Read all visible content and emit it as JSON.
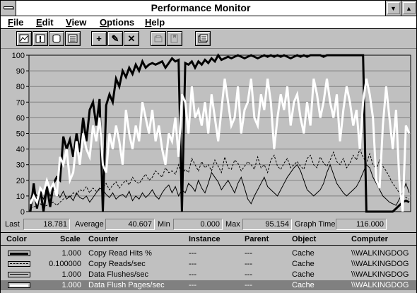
{
  "window": {
    "title": "Performance Monitor"
  },
  "menu": {
    "file": {
      "first": "F",
      "rest": "ile"
    },
    "edit": {
      "first": "E",
      "rest": "dit"
    },
    "view": {
      "first": "V",
      "rest": "iew"
    },
    "options": {
      "first": "O",
      "rest": "ptions"
    },
    "help": {
      "first": "H",
      "rest": "elp"
    }
  },
  "toolbar": {
    "buttons": [
      {
        "icon": "chart-view-icon"
      },
      {
        "icon": "alert-view-icon"
      },
      {
        "icon": "log-view-icon"
      },
      {
        "icon": "report-view-icon"
      },
      {
        "icon": "add-counter-icon",
        "glyph": "+"
      },
      {
        "icon": "edit-counter-icon",
        "glyph": "✎"
      },
      {
        "icon": "delete-counter-icon",
        "glyph": "✕"
      },
      {
        "icon": "update-now-icon"
      },
      {
        "icon": "bookmark-icon"
      },
      {
        "icon": "options-icon"
      }
    ]
  },
  "valuebar": {
    "last_label": "Last",
    "last_value": "18.781",
    "average_label": "Average",
    "average_value": "40.607",
    "min_label": "Min",
    "min_value": "0.000",
    "max_label": "Max",
    "max_value": "95.154",
    "graph_time_label": "Graph Time",
    "graph_time_value": "116.000"
  },
  "legend": {
    "headers": {
      "color": "Color",
      "scale": "Scale",
      "counter": "Counter",
      "instance": "Instance",
      "parent": "Parent",
      "object": "Object",
      "computer": "Computer"
    },
    "rows": [
      {
        "scale": "1.000",
        "counter": "Copy Read Hits %",
        "instance": "---",
        "parent": "---",
        "object": "Cache",
        "computer": "\\\\WALKINGDOG",
        "style": "thick-black"
      },
      {
        "scale": "0.100000",
        "counter": "Copy Reads/sec",
        "instance": "---",
        "parent": "---",
        "object": "Cache",
        "computer": "\\\\WALKINGDOG",
        "style": "dashed-black"
      },
      {
        "scale": "1.000",
        "counter": "Data Flushes/sec",
        "instance": "---",
        "parent": "---",
        "object": "Cache",
        "computer": "\\\\WALKINGDOG",
        "style": "thin-black"
      },
      {
        "scale": "1.000",
        "counter": "Data Flush Pages/sec",
        "instance": "---",
        "parent": "---",
        "object": "Cache",
        "computer": "\\\\WALKINGDOG",
        "style": "thick-white"
      }
    ]
  },
  "chart_data": {
    "type": "line",
    "ylim": [
      0,
      100
    ],
    "y_ticks": [
      "0",
      "10",
      "20",
      "30",
      "40",
      "50",
      "60",
      "70",
      "80",
      "90",
      "100"
    ],
    "grid": "horizontal",
    "series": [
      {
        "name": "Copy Read Hits %",
        "color": "#000000",
        "style": "thick",
        "values": [
          0,
          18,
          2,
          14,
          0,
          16,
          3,
          18,
          22,
          20,
          48,
          40,
          46,
          35,
          50,
          38,
          60,
          45,
          65,
          70,
          55,
          72,
          0,
          68,
          75,
          70,
          85,
          80,
          90,
          86,
          92,
          88,
          94,
          90,
          96,
          92,
          94,
          95,
          94,
          95,
          96,
          92,
          95,
          98,
          96,
          97,
          0,
          95,
          94,
          96,
          92,
          96,
          94,
          97,
          95,
          98,
          96,
          100,
          97,
          98,
          99,
          98,
          99,
          100,
          99,
          98,
          99,
          100,
          99,
          98,
          99,
          100,
          99,
          100,
          99,
          100,
          99,
          100,
          99,
          98,
          99,
          100,
          99,
          100,
          99,
          100,
          100,
          100,
          100,
          99,
          100,
          100,
          100,
          100,
          100,
          100,
          100,
          100,
          100,
          100,
          100,
          100,
          0,
          0,
          0,
          0,
          0,
          0,
          0,
          0,
          0,
          2,
          4,
          6,
          7,
          6
        ]
      },
      {
        "name": "Copy Reads/sec",
        "color": "#000000",
        "style": "dashed",
        "values": [
          2,
          3,
          4,
          5,
          3,
          4,
          5,
          6,
          4,
          6,
          8,
          10,
          9,
          12,
          11,
          14,
          13,
          16,
          12,
          15,
          13,
          14,
          15,
          18,
          14,
          17,
          19,
          15,
          18,
          20,
          17,
          22,
          19,
          18,
          21,
          24,
          20,
          22,
          26,
          24,
          22,
          28,
          25,
          26,
          24,
          30,
          23,
          27,
          25,
          34,
          30,
          26,
          32,
          28,
          30,
          26,
          33,
          29,
          25,
          35,
          28,
          27,
          33,
          31,
          26,
          29,
          32,
          30,
          27,
          35,
          28,
          30,
          25,
          33,
          36,
          29,
          27,
          31,
          34,
          28,
          30,
          32,
          29,
          27,
          34,
          36,
          30,
          28,
          35,
          31,
          29,
          33,
          38,
          32,
          30,
          34,
          28,
          31,
          36,
          33,
          40,
          35,
          31,
          37,
          30,
          27,
          33,
          29,
          26,
          22,
          18,
          15,
          12,
          10,
          9,
          8
        ]
      },
      {
        "name": "Data Flushes/sec",
        "color": "#000000",
        "style": "thin",
        "values": [
          8,
          14,
          10,
          12,
          8,
          15,
          10,
          14,
          12,
          9,
          13,
          8,
          10,
          7,
          12,
          9,
          8,
          10,
          6,
          9,
          12,
          15,
          14,
          11,
          9,
          12,
          8,
          10,
          11,
          9,
          13,
          7,
          10,
          8,
          12,
          9,
          11,
          14,
          10,
          8,
          12,
          15,
          17,
          12,
          16,
          10,
          14,
          12,
          18,
          16,
          13,
          20,
          15,
          12,
          18,
          25,
          22,
          19,
          14,
          17,
          20,
          16,
          12,
          18,
          22,
          15,
          8,
          5,
          10,
          14,
          18,
          22,
          16,
          14,
          12,
          10,
          14,
          18,
          22,
          25,
          28,
          30,
          26,
          20,
          14,
          12,
          10,
          12,
          14,
          18,
          25,
          30,
          24,
          18,
          15,
          12,
          10,
          12,
          14,
          16,
          20,
          25,
          30,
          28,
          22,
          18,
          14,
          10,
          8,
          6,
          5,
          4,
          8,
          12,
          18,
          12
        ]
      },
      {
        "name": "Data Flush Pages/sec",
        "color": "#ffffff",
        "style": "thick",
        "values": [
          5,
          10,
          6,
          15,
          12,
          20,
          14,
          18,
          10,
          35,
          30,
          40,
          20,
          25,
          45,
          30,
          50,
          40,
          35,
          55,
          45,
          60,
          30,
          25,
          50,
          40,
          55,
          45,
          30,
          65,
          50,
          40,
          55,
          45,
          70,
          60,
          50,
          65,
          45,
          55,
          40,
          30,
          50,
          45,
          60,
          35,
          75,
          70,
          50,
          80,
          60,
          65,
          55,
          70,
          50,
          75,
          60,
          45,
          65,
          85,
          70,
          55,
          60,
          80,
          50,
          65,
          70,
          85,
          60,
          55,
          75,
          65,
          85,
          70,
          40,
          60,
          75,
          65,
          80,
          55,
          70,
          75,
          60,
          50,
          70,
          55,
          85,
          75,
          60,
          70,
          85,
          70,
          60,
          75,
          45,
          65,
          80,
          70,
          55,
          65,
          40,
          70,
          85,
          75,
          60,
          20,
          15,
          55,
          80,
          60,
          40,
          65,
          20,
          0,
          55,
          50
        ]
      }
    ]
  }
}
